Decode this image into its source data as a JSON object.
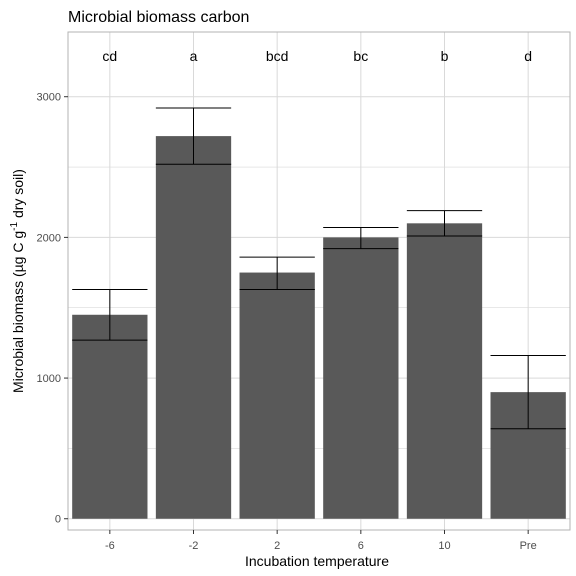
{
  "chart_data": {
    "type": "bar",
    "title": "Microbial biomass carbon",
    "xlabel": "Incubation temperature",
    "ylabel_parts": {
      "base": "Microbial biomass (µg C g",
      "sup": "-1",
      "tail": " dry soil)"
    },
    "categories": [
      "-6",
      "-2",
      "2",
      "6",
      "10",
      "Pre"
    ],
    "values": [
      1450,
      2720,
      1750,
      2000,
      2100,
      900
    ],
    "error_low": [
      1270,
      2520,
      1630,
      1920,
      2010,
      640
    ],
    "error_high": [
      1630,
      2920,
      1860,
      2070,
      2190,
      1160
    ],
    "significance": [
      "cd",
      "a",
      "bcd",
      "bc",
      "b",
      "d"
    ],
    "ylim": [
      -80,
      3460
    ],
    "yticks": [
      0,
      1000,
      2000,
      3000
    ],
    "grid": true,
    "colors": {
      "bar": "#595959",
      "grid": "#d9d9d9",
      "panel_border": "#b3b3b3",
      "error_bar": "#000000"
    }
  }
}
